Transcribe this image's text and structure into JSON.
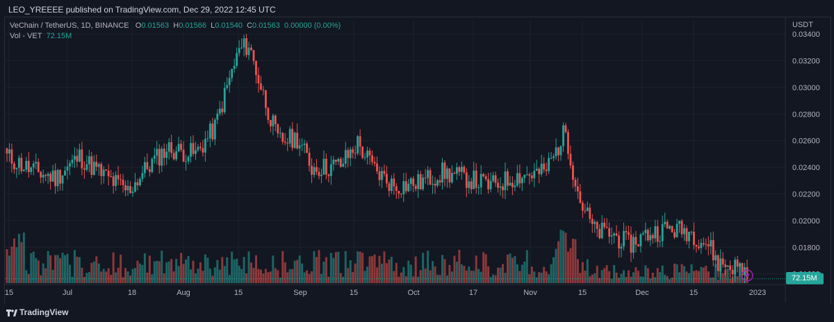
{
  "header": {
    "published": "LEO_YREEEE published on TradingView.com, Dec 29, 2022 12:45 UTC"
  },
  "legend": {
    "symbol": "VeChain / TetherUS, 1D, BINANCE",
    "o_label": "O",
    "o": "0.01563",
    "h_label": "H",
    "h": "0.01566",
    "l_label": "L",
    "l": "0.01540",
    "c_label": "C",
    "c": "0.01563",
    "change": "0.00000 (0.00%)",
    "vol_label": "Vol - VET",
    "vol": "72.15M"
  },
  "footer": {
    "brand": "TradingView"
  },
  "colors": {
    "up": "#26a69a",
    "down": "#ef5350",
    "bg": "#131722",
    "grid": "#1e222d"
  },
  "chart_data": {
    "type": "candlestick",
    "currency": "USDT",
    "ylim": [
      0.0152,
      0.035
    ],
    "y_ticks": [
      "0.03400",
      "0.03200",
      "0.03000",
      "0.02800",
      "0.02600",
      "0.02400",
      "0.02200",
      "0.02000",
      "0.01800",
      "0.01600"
    ],
    "x_ticks": [
      "15",
      "Jul",
      "18",
      "Aug",
      "15",
      "Sep",
      "15",
      "Oct",
      "17",
      "Nov",
      "15",
      "Dec",
      "15",
      "2023"
    ],
    "last_price": "0.01563",
    "last_volume": "72.15M",
    "control_points": [
      [
        0,
        0.0248
      ],
      [
        10,
        0.0238
      ],
      [
        20,
        0.0232
      ],
      [
        30,
        0.0248
      ],
      [
        40,
        0.0234
      ],
      [
        50,
        0.0222
      ],
      [
        58,
        0.024
      ],
      [
        66,
        0.0254
      ],
      [
        78,
        0.025
      ],
      [
        86,
        0.027
      ],
      [
        92,
        0.0306
      ],
      [
        96,
        0.0328
      ],
      [
        100,
        0.0332
      ],
      [
        105,
        0.03
      ],
      [
        112,
        0.026
      ],
      [
        120,
        0.0262
      ],
      [
        126,
        0.024
      ],
      [
        132,
        0.024
      ],
      [
        138,
        0.0242
      ],
      [
        145,
        0.0258
      ],
      [
        152,
        0.0238
      ],
      [
        160,
        0.0226
      ],
      [
        170,
        0.0228
      ],
      [
        180,
        0.0236
      ],
      [
        190,
        0.0232
      ],
      [
        200,
        0.0226
      ],
      [
        212,
        0.0234
      ],
      [
        222,
        0.0236
      ],
      [
        226,
        0.0248
      ],
      [
        231,
        0.0268
      ],
      [
        234,
        0.0238
      ],
      [
        237,
        0.0215
      ],
      [
        243,
        0.0192
      ],
      [
        250,
        0.019
      ],
      [
        257,
        0.0182
      ],
      [
        265,
        0.019
      ],
      [
        273,
        0.0194
      ],
      [
        282,
        0.0192
      ],
      [
        290,
        0.0182
      ],
      [
        294,
        0.0168
      ],
      [
        300,
        0.0166
      ],
      [
        306,
        0.0163
      ]
    ]
  }
}
